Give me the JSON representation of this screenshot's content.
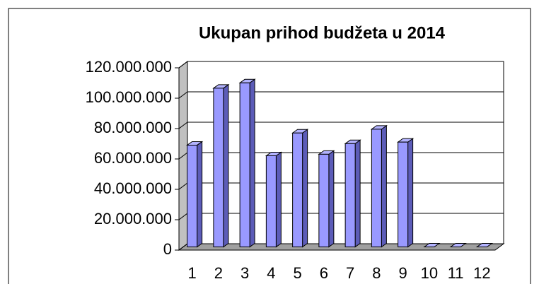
{
  "chart_data": {
    "type": "bar3d",
    "title": "Ukupan prihod  budžeta u 2014",
    "categories": [
      "1",
      "2",
      "3",
      "4",
      "5",
      "6",
      "7",
      "8",
      "9",
      "10",
      "11",
      "12"
    ],
    "values": [
      67000000,
      104500000,
      108000000,
      60000000,
      75000000,
      61000000,
      68000000,
      77500000,
      69000000,
      0,
      0,
      0
    ],
    "color": "#9999ff",
    "ylim": [
      0,
      120000000
    ],
    "yticks": [
      {
        "value": 0,
        "label": "0"
      },
      {
        "value": 20000000,
        "label": "20.000.000"
      },
      {
        "value": 40000000,
        "label": "40.000.000"
      },
      {
        "value": 60000000,
        "label": "60.000.000"
      },
      {
        "value": 80000000,
        "label": "80.000.000"
      },
      {
        "value": 100000000,
        "label": "100.000.000"
      },
      {
        "value": 120000000,
        "label": "120.000.000"
      }
    ],
    "grid": true
  }
}
